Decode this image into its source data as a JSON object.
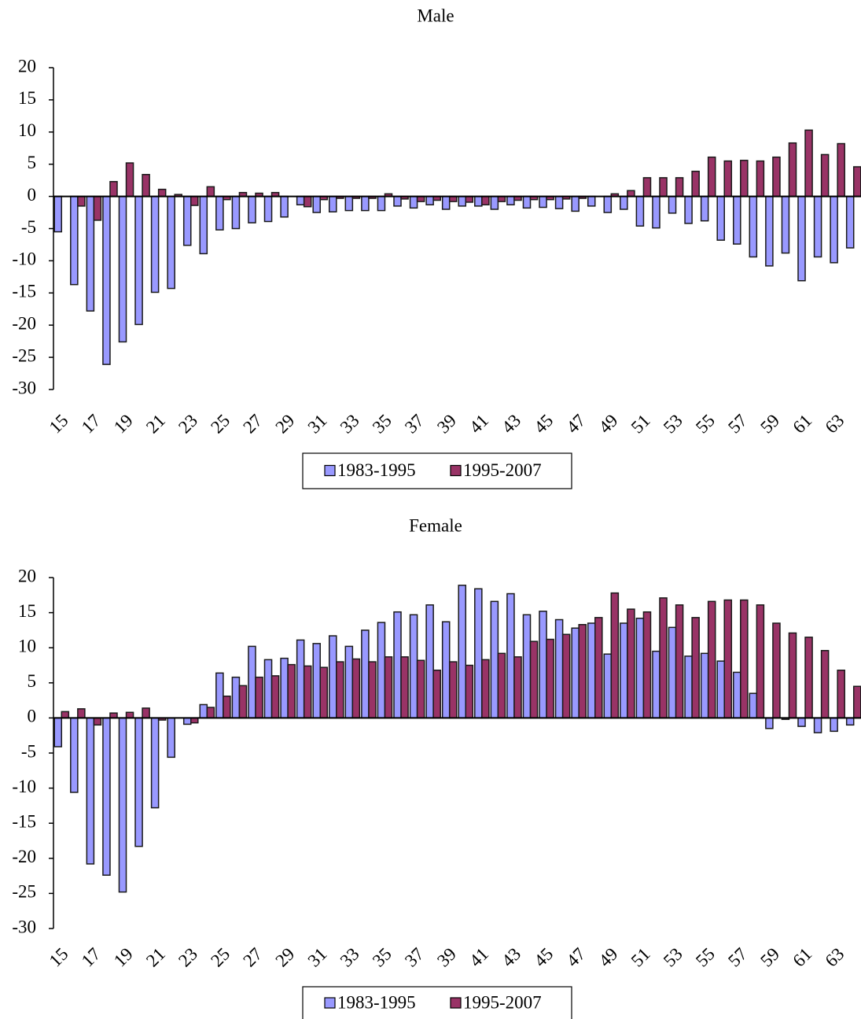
{
  "chart_data": [
    {
      "type": "bar",
      "title": "Male",
      "categories": [
        "15",
        null,
        "17",
        null,
        "19",
        null,
        "21",
        null,
        "23",
        null,
        "25",
        null,
        "27",
        null,
        "29",
        null,
        "31",
        null,
        "33",
        null,
        "35",
        null,
        "37",
        null,
        "39",
        null,
        "41",
        null,
        "43",
        null,
        "45",
        null,
        "47",
        null,
        "49",
        null,
        "51",
        null,
        "53",
        null,
        "55",
        null,
        "57",
        null,
        "59",
        null,
        "61",
        null,
        "63",
        null
      ],
      "series": [
        {
          "name": "1983-1995",
          "color": "#9999ff",
          "values": [
            -5.5,
            -13.7,
            -17.8,
            -26.1,
            -22.6,
            -19.9,
            -14.9,
            -14.3,
            -7.6,
            -8.9,
            -5.2,
            -5.0,
            -4.1,
            -3.9,
            -3.2,
            -1.3,
            -2.5,
            -2.4,
            -2.2,
            -2.2,
            -2.2,
            -1.5,
            -1.8,
            -1.3,
            -2.0,
            -1.5,
            -1.5,
            -2.0,
            -1.3,
            -1.8,
            -1.7,
            -1.9,
            -2.3,
            -1.5,
            -2.5,
            -2.0,
            -4.6,
            -4.9,
            -2.6,
            -4.2,
            -3.8,
            -6.8,
            -7.4,
            -9.4,
            -10.8,
            -8.8,
            -13.1,
            -9.4,
            -10.3,
            -8.0
          ]
        },
        {
          "name": "1995-2007",
          "color": "#993366",
          "values": [
            0,
            -1.5,
            -3.7,
            2.3,
            5.2,
            3.4,
            1.1,
            0.3,
            -1.4,
            1.5,
            -0.5,
            0.6,
            0.5,
            0.6,
            0,
            -1.6,
            -0.5,
            -0.3,
            -0.3,
            -0.3,
            0.4,
            -0.4,
            -0.8,
            -0.6,
            -0.8,
            -0.9,
            -1.3,
            -0.8,
            -0.6,
            -0.5,
            -0.5,
            -0.4,
            -0.3,
            0,
            0.4,
            0.9,
            2.9,
            2.9,
            2.9,
            3.9,
            6.1,
            5.5,
            5.6,
            5.5,
            6.1,
            8.3,
            10.3,
            6.5,
            8.2,
            4.6
          ]
        }
      ],
      "ylim": [
        -30,
        20
      ],
      "yticks": [
        -30,
        -25,
        -20,
        -15,
        -10,
        -5,
        0,
        5,
        10,
        15,
        20
      ],
      "grid": false
    },
    {
      "type": "bar",
      "title": "Female",
      "categories": [
        "15",
        null,
        "17",
        null,
        "19",
        null,
        "21",
        null,
        "23",
        null,
        "25",
        null,
        "27",
        null,
        "29",
        null,
        "31",
        null,
        "33",
        null,
        "35",
        null,
        "37",
        null,
        "39",
        null,
        "41",
        null,
        "43",
        null,
        "45",
        null,
        "47",
        null,
        "49",
        null,
        "51",
        null,
        "53",
        null,
        "55",
        null,
        "57",
        null,
        "59",
        null,
        "61",
        null,
        "63",
        null
      ],
      "series": [
        {
          "name": "1983-1995",
          "color": "#9999ff",
          "values": [
            -4.1,
            -10.6,
            -20.8,
            -22.4,
            -24.8,
            -18.3,
            -12.8,
            -5.6,
            -0.9,
            1.9,
            6.4,
            5.8,
            10.2,
            8.3,
            8.5,
            11.1,
            10.6,
            11.7,
            10.2,
            12.5,
            13.6,
            15.1,
            14.7,
            16.1,
            13.7,
            18.9,
            18.4,
            16.6,
            17.7,
            14.7,
            15.2,
            14.0,
            12.8,
            13.5,
            9.1,
            13.5,
            14.2,
            9.5,
            12.9,
            8.8,
            9.2,
            8.1,
            6.5,
            3.5,
            -1.5,
            -0.2,
            -1.2,
            -2.1,
            -1.9,
            -1.0
          ]
        },
        {
          "name": "1995-2007",
          "color": "#993366",
          "values": [
            0.9,
            1.3,
            -1.0,
            0.7,
            0.8,
            1.4,
            -0.3,
            0,
            -0.7,
            1.5,
            3.1,
            4.6,
            5.8,
            6.0,
            7.6,
            7.4,
            7.2,
            8.0,
            8.4,
            8.0,
            8.7,
            8.7,
            8.2,
            6.8,
            8.0,
            7.5,
            8.3,
            9.2,
            8.7,
            10.9,
            11.2,
            11.9,
            13.3,
            14.3,
            17.8,
            15.5,
            15.1,
            17.1,
            16.1,
            14.3,
            16.6,
            16.8,
            16.8,
            16.1,
            13.5,
            12.1,
            11.5,
            9.6,
            6.8,
            4.5
          ]
        }
      ],
      "ylim": [
        -30,
        20
      ],
      "yticks": [
        -30,
        -25,
        -20,
        -15,
        -10,
        -5,
        0,
        5,
        10,
        15,
        20
      ],
      "grid": false
    }
  ]
}
